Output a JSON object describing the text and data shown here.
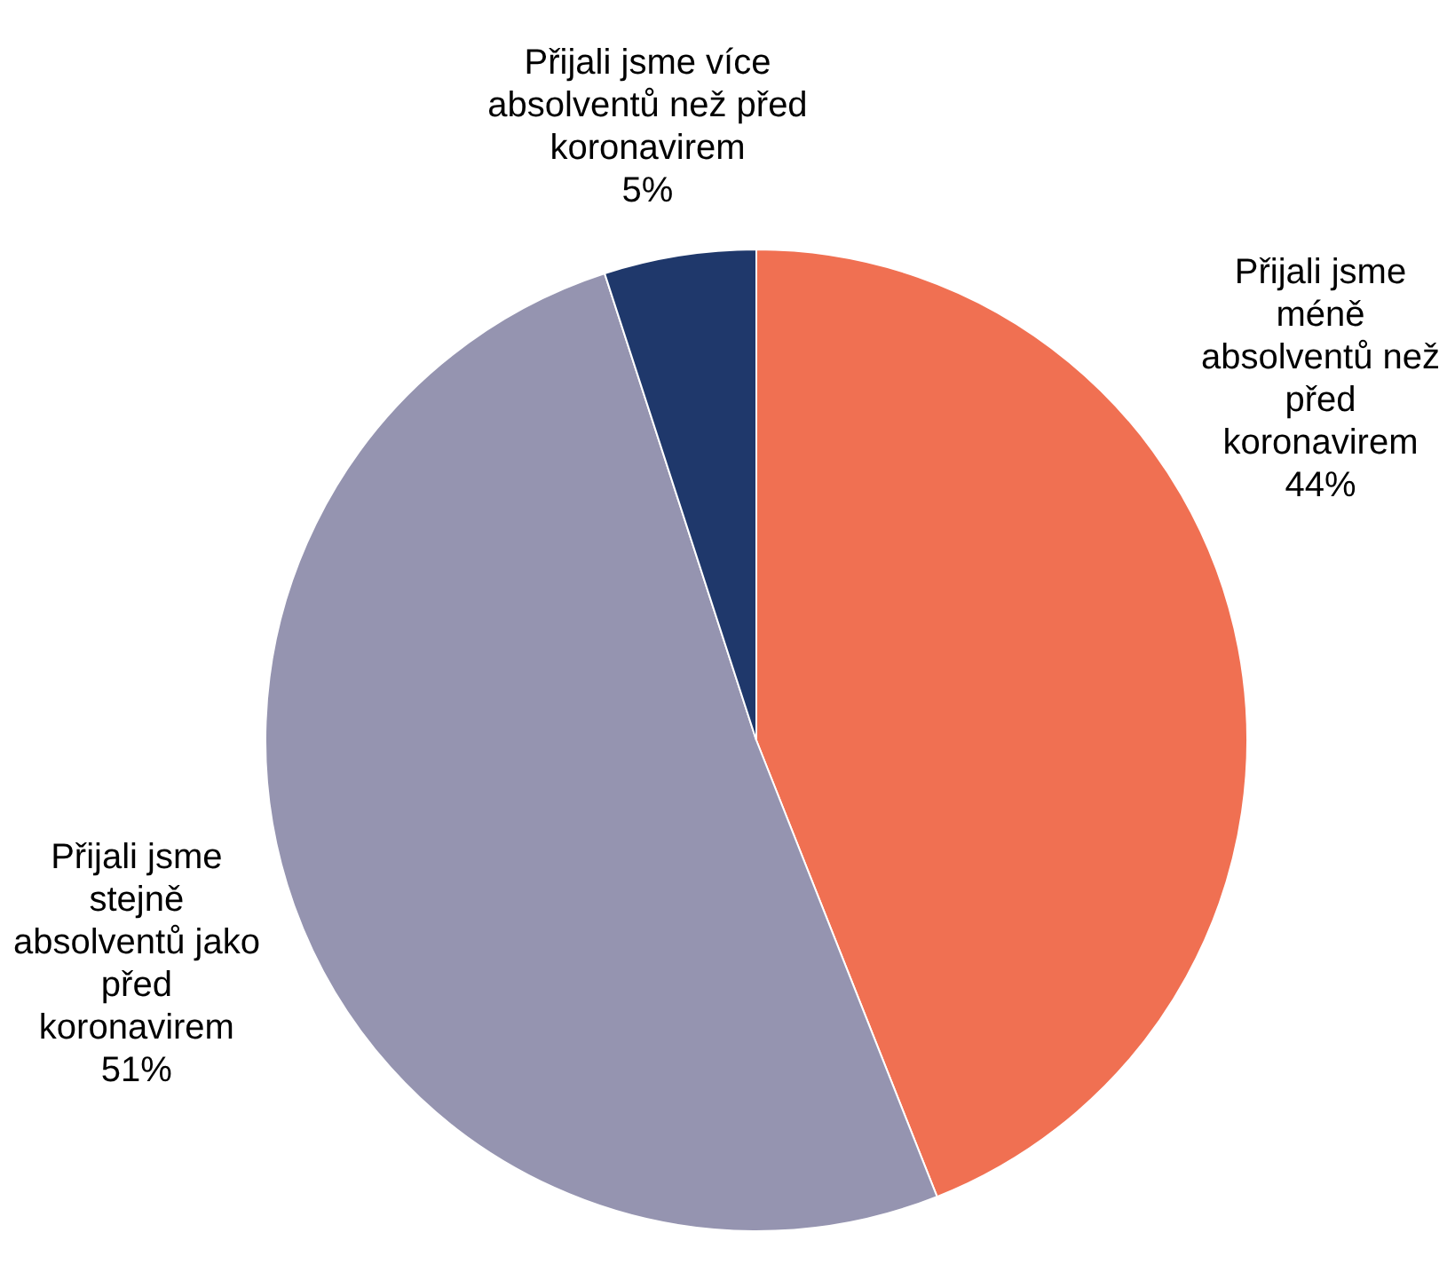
{
  "chart_data": {
    "type": "pie",
    "categories": [
      "Přijali jsme méně absolventů než před koronavirem",
      "Přijali jsme stejně absolventů jako před koronavirem",
      "Přijali jsme více absolventů než před koronavirem"
    ],
    "values": [
      44,
      51,
      5
    ],
    "colors": [
      "#f07052",
      "#9594b0",
      "#1f386b"
    ],
    "value_labels": [
      "44%",
      "51%",
      "5%"
    ],
    "legend": false
  }
}
